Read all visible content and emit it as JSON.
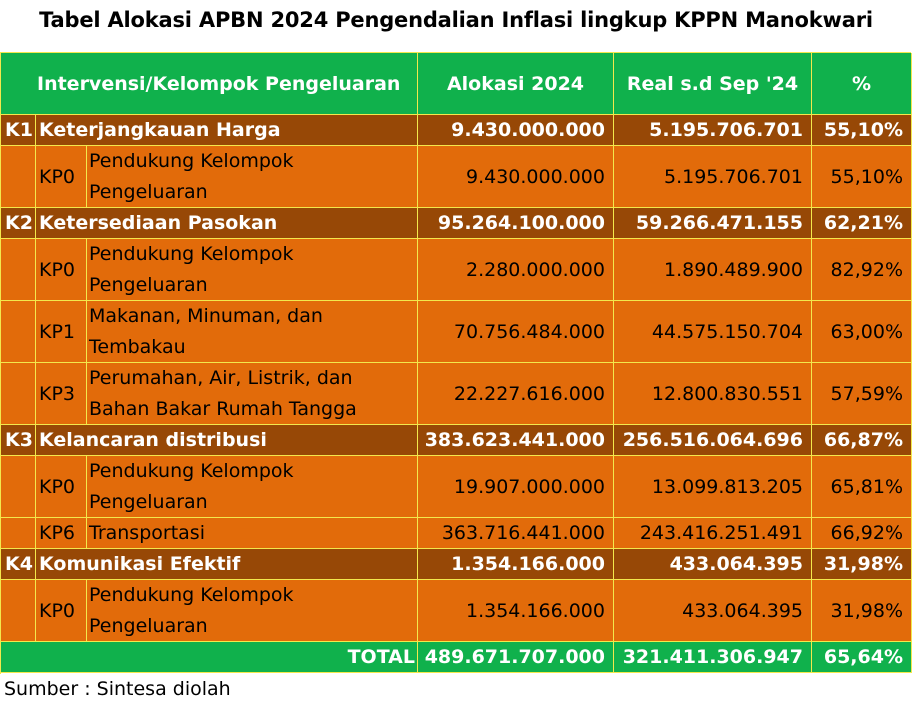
{
  "title": "Tabel Alokasi APBN 2024 Pengendalian Inflasi lingkup KPPN Manokwari",
  "header": {
    "intervensi": "Intervensi/Kelompok Pengeluaran",
    "alokasi": "Alokasi 2024",
    "real": "Real s.d Sep '24",
    "persen": "%"
  },
  "k1": {
    "code": "K1",
    "name": "Keterjangkauan Harga",
    "alokasi": "9.430.000.000",
    "real": "5.195.706.701",
    "persen": "55,10%"
  },
  "k1_kp0": {
    "code": "KP0",
    "name": "Pendukung Kelompok Pengeluaran",
    "alokasi": "9.430.000.000",
    "real": "5.195.706.701",
    "persen": "55,10%"
  },
  "k2": {
    "code": "K2",
    "name": "Ketersediaan Pasokan",
    "alokasi": "95.264.100.000",
    "real": "59.266.471.155",
    "persen": "62,21%"
  },
  "k2_kp0": {
    "code": "KP0",
    "name": "Pendukung Kelompok Pengeluaran",
    "alokasi": "2.280.000.000",
    "real": "1.890.489.900",
    "persen": "82,92%"
  },
  "k2_kp1": {
    "code": "KP1",
    "name": "Makanan, Minuman, dan Tembakau",
    "alokasi": "70.756.484.000",
    "real": "44.575.150.704",
    "persen": "63,00%"
  },
  "k2_kp3": {
    "code": "KP3",
    "name": "Perumahan, Air, Listrik, dan Bahan Bakar Rumah Tangga",
    "alokasi": "22.227.616.000",
    "real": "12.800.830.551",
    "persen": "57,59%"
  },
  "k3": {
    "code": "K3",
    "name": "Kelancaran distribusi",
    "alokasi": "383.623.441.000",
    "real": "256.516.064.696",
    "persen": "66,87%"
  },
  "k3_kp0": {
    "code": "KP0",
    "name": "Pendukung Kelompok Pengeluaran",
    "alokasi": "19.907.000.000",
    "real": "13.099.813.205",
    "persen": "65,81%"
  },
  "k3_kp6": {
    "code": "KP6",
    "name": "Transportasi",
    "alokasi": "363.716.441.000",
    "real": "243.416.251.491",
    "persen": "66,92%"
  },
  "k4": {
    "code": "K4",
    "name": "Komunikasi Efektif",
    "alokasi": "1.354.166.000",
    "real": "433.064.395",
    "persen": "31,98%"
  },
  "k4_kp0": {
    "code": "KP0",
    "name": "Pendukung Kelompok Pengeluaran",
    "alokasi": "1.354.166.000",
    "real": "433.064.395",
    "persen": "31,98%"
  },
  "total": {
    "label": "TOTAL",
    "alokasi": "489.671.707.000",
    "real": "321.411.306.947",
    "persen": "65,64%"
  },
  "source": "Sumber : Sintesa diolah",
  "colors": {
    "header_green": "#10b14c",
    "k_brown": "#974806",
    "kp_orange": "#e26b0a",
    "border_yellow": "#f3e84c"
  }
}
